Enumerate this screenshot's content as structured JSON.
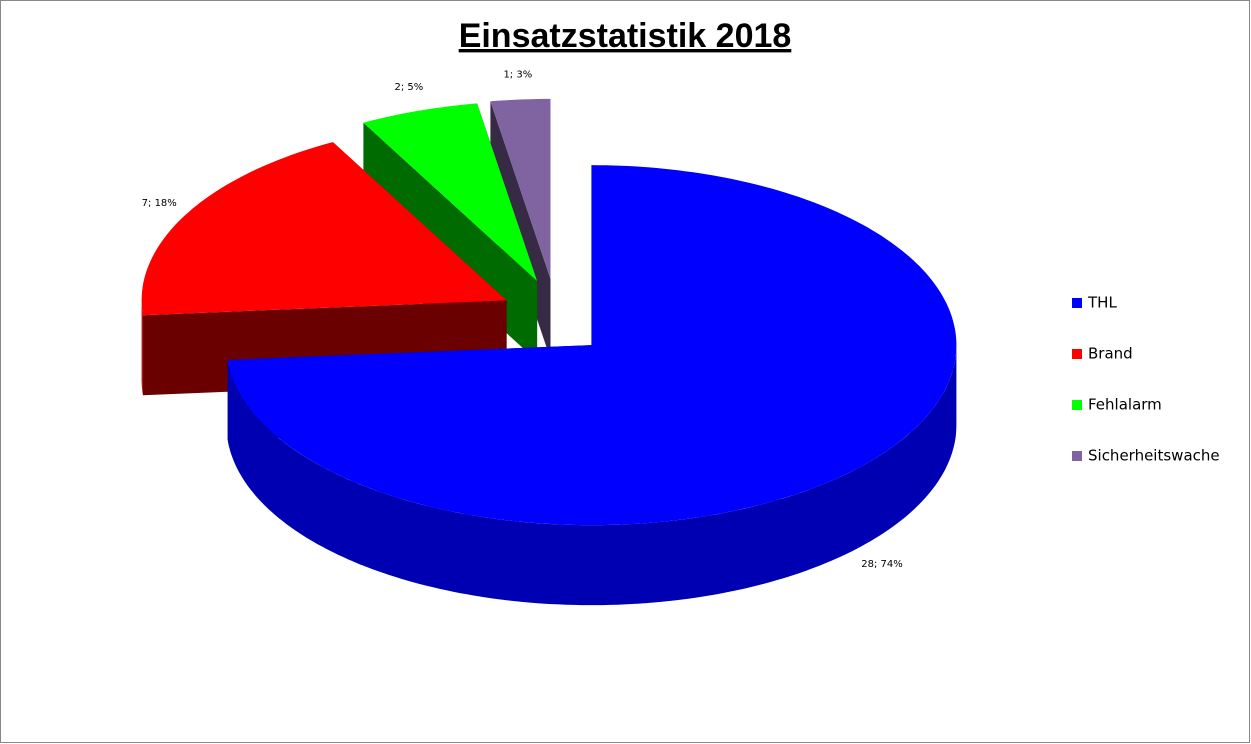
{
  "chart_data": {
    "type": "pie3d",
    "title": "Einsatzstatistik 2018",
    "categories": [
      "THL",
      "Brand",
      "Fehlalarm",
      "Sicherheitswache"
    ],
    "values": [
      28,
      7,
      2,
      1
    ],
    "value_labels": [
      "28; 74%",
      "7; 18%",
      "2; 5%",
      "1; 3%"
    ],
    "colors": [
      "#0000ff",
      "#ff0000",
      "#00ff00",
      "#8064a2"
    ],
    "legend": "right"
  }
}
